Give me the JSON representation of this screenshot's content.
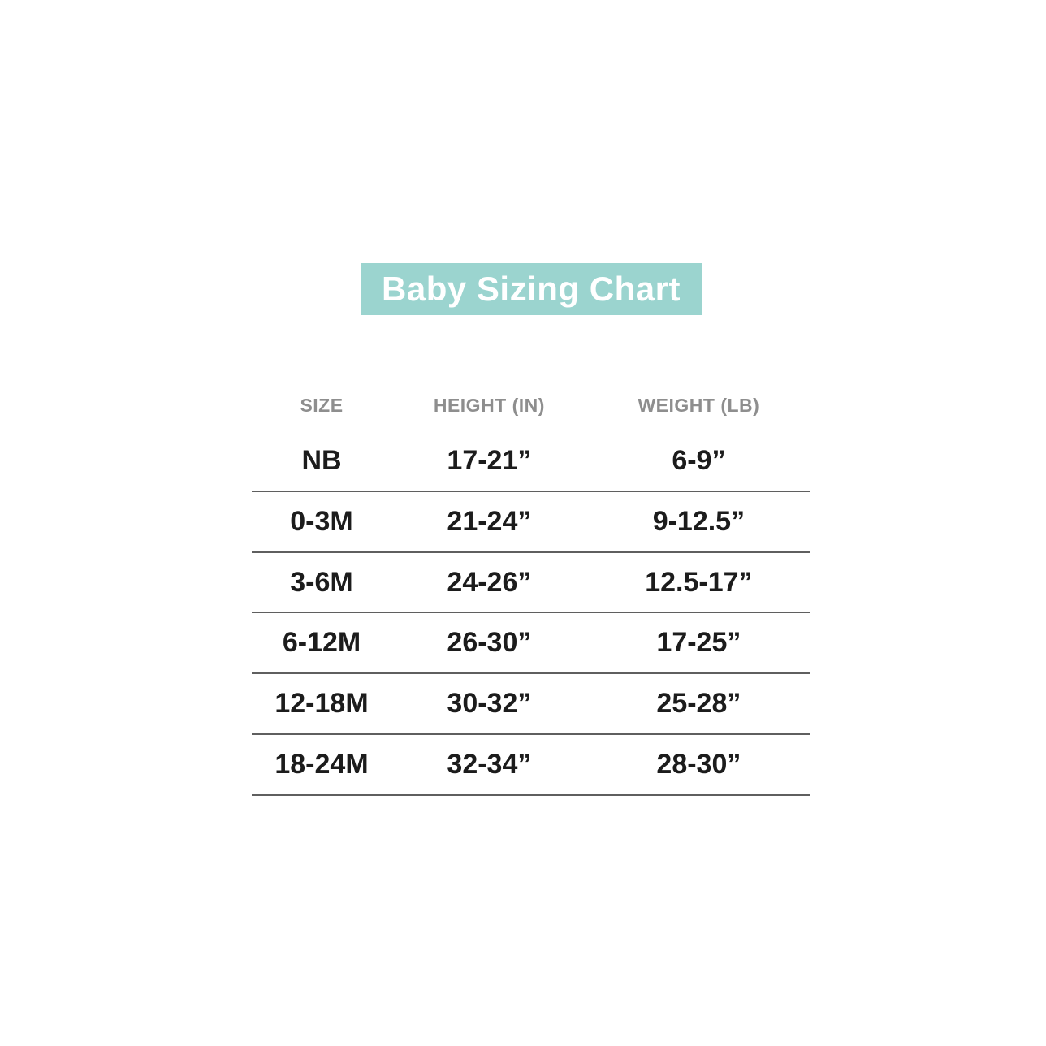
{
  "title": {
    "text": "Baby Sizing Chart"
  },
  "colors": {
    "page-bg": "#ffffff",
    "banner-bg": "#9bd4cf",
    "banner-text": "#ffffff",
    "header-text": "#8e8e8e",
    "cell-text": "#1c1c1c",
    "divider": "#5f5f5f"
  },
  "chart_data": {
    "type": "table",
    "title": "Baby Sizing Chart",
    "columns": [
      "SIZE",
      "HEIGHT (IN)",
      "WEIGHT (LB)"
    ],
    "rows": [
      {
        "size": "NB",
        "height_in": "17-21”",
        "weight_lb": "6-9”"
      },
      {
        "size": "0-3M",
        "height_in": "21-24”",
        "weight_lb": "9-12.5”"
      },
      {
        "size": "3-6M",
        "height_in": "24-26”",
        "weight_lb": "12.5-17”"
      },
      {
        "size": "6-12M",
        "height_in": "26-30”",
        "weight_lb": "17-25”"
      },
      {
        "size": "12-18M",
        "height_in": "30-32”",
        "weight_lb": "25-28”"
      },
      {
        "size": "18-24M",
        "height_in": "32-34”",
        "weight_lb": "28-30”"
      }
    ]
  }
}
